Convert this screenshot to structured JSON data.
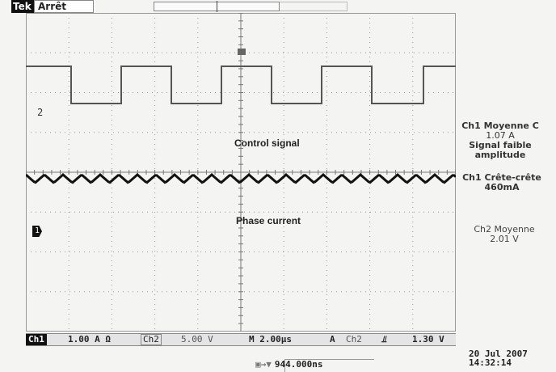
{
  "top": {
    "brand": "Tek",
    "state": "Arrêt"
  },
  "screen": {
    "ch2_marker": "2",
    "ch1_marker": "1",
    "label_control": "Control signal",
    "label_phase": "Phase current"
  },
  "measurements": [
    {
      "title": "Ch1 Moyenne C",
      "value": "1.07 A",
      "note": "Signal faible amplitude"
    },
    {
      "title": "Ch1 Crête-crête",
      "value": "460mA"
    },
    {
      "title": "Ch2 Moyenne",
      "value": "2.01 V"
    }
  ],
  "bottom": {
    "ch1_tag": "Ch1",
    "ch1_scale": "1.00 A Ω",
    "ch2_tag": "Ch2",
    "ch2_scale": "5.00 V",
    "timebase": "M 2.00µs",
    "trigger_mode": "A",
    "trigger_channel": "Ch2",
    "trigger_edge": "⫫",
    "trigger_level": "1.30 V"
  },
  "position": {
    "icon": "trigger-position-icon",
    "value": "944.000ns"
  },
  "datetime": {
    "date": "20 Jul  2007",
    "time": "14:32:14"
  },
  "colors": {
    "trace": "#111111",
    "control_trace": "#555555",
    "grid": "#9a9a9a"
  }
}
